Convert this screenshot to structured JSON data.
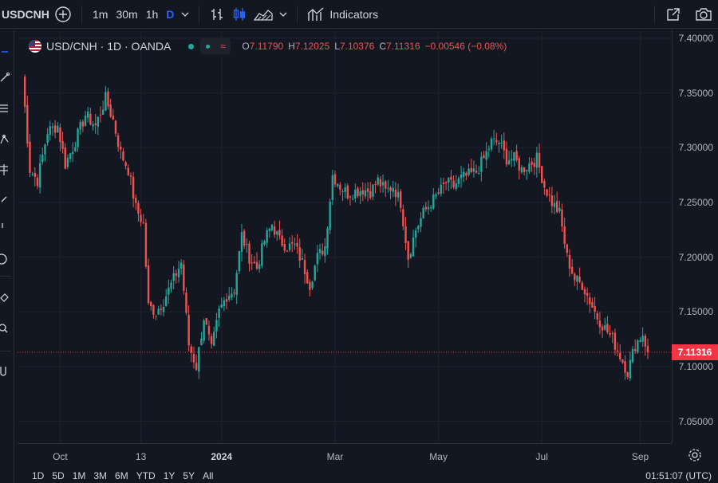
{
  "toolbar": {
    "symbol": "USDCNH",
    "intervals": [
      "1m",
      "30m",
      "1h",
      "D"
    ],
    "active_interval": "D",
    "indicators_label": "Indicators"
  },
  "legend": {
    "title": "USD/CNH · 1D · OANDA",
    "o_label": "O",
    "o_val": "7.11790",
    "h_label": "H",
    "h_val": "7.12025",
    "l_label": "L",
    "l_val": "7.10376",
    "c_label": "C",
    "c_val": "7.11316",
    "change": "−0.00546 (−0.08%)"
  },
  "price_axis": {
    "ticks": [
      "7.40000",
      "7.35000",
      "7.30000",
      "7.25000",
      "7.20000",
      "7.15000",
      "7.10000",
      "7.05000"
    ],
    "last_price": "7.11316"
  },
  "time_axis": {
    "ticks": [
      {
        "label": "Oct",
        "bold": false
      },
      {
        "label": "13",
        "bold": false
      },
      {
        "label": "2024",
        "bold": true
      },
      {
        "label": "Mar",
        "bold": false
      },
      {
        "label": "May",
        "bold": false
      },
      {
        "label": "Jul",
        "bold": false
      },
      {
        "label": "Sep",
        "bold": false
      }
    ]
  },
  "bottom": {
    "ranges": [
      "1D",
      "5D",
      "1M",
      "3M",
      "6M",
      "YTD",
      "1Y",
      "5Y",
      "All"
    ],
    "clock": "01:51:07 (UTC)"
  },
  "colors": {
    "up": "#26a69a",
    "down": "#ef5350",
    "background": "#131722",
    "grid": "#1e222d",
    "last_price": "#f23645"
  },
  "chart_data": {
    "type": "candlestick",
    "symbol": "USD/CNH",
    "interval": "1D",
    "ylim": [
      7.03,
      7.4
    ],
    "anchors": [
      [
        0,
        7.365
      ],
      [
        3,
        7.28
      ],
      [
        6,
        7.27
      ],
      [
        10,
        7.315
      ],
      [
        14,
        7.32
      ],
      [
        17,
        7.285
      ],
      [
        20,
        7.3
      ],
      [
        25,
        7.33
      ],
      [
        29,
        7.32
      ],
      [
        33,
        7.345
      ],
      [
        36,
        7.325
      ],
      [
        39,
        7.295
      ],
      [
        42,
        7.28
      ],
      [
        45,
        7.245
      ],
      [
        48,
        7.23
      ],
      [
        50,
        7.155
      ],
      [
        53,
        7.15
      ],
      [
        56,
        7.16
      ],
      [
        60,
        7.18
      ],
      [
        63,
        7.195
      ],
      [
        66,
        7.12
      ],
      [
        69,
        7.1
      ],
      [
        72,
        7.145
      ],
      [
        75,
        7.115
      ],
      [
        78,
        7.15
      ],
      [
        81,
        7.165
      ],
      [
        84,
        7.17
      ],
      [
        87,
        7.22
      ],
      [
        90,
        7.2
      ],
      [
        93,
        7.19
      ],
      [
        96,
        7.215
      ],
      [
        99,
        7.23
      ],
      [
        102,
        7.215
      ],
      [
        105,
        7.21
      ],
      [
        108,
        7.21
      ],
      [
        111,
        7.195
      ],
      [
        114,
        7.175
      ],
      [
        117,
        7.2
      ],
      [
        120,
        7.21
      ],
      [
        123,
        7.275
      ],
      [
        126,
        7.265
      ],
      [
        129,
        7.258
      ],
      [
        132,
        7.26
      ],
      [
        135,
        7.262
      ],
      [
        138,
        7.26
      ],
      [
        141,
        7.27
      ],
      [
        144,
        7.26
      ],
      [
        147,
        7.265
      ],
      [
        150,
        7.25
      ],
      [
        153,
        7.2
      ],
      [
        156,
        7.225
      ],
      [
        159,
        7.24
      ],
      [
        162,
        7.25
      ],
      [
        165,
        7.258
      ],
      [
        168,
        7.268
      ],
      [
        171,
        7.265
      ],
      [
        174,
        7.272
      ],
      [
        177,
        7.275
      ],
      [
        180,
        7.278
      ],
      [
        183,
        7.29
      ],
      [
        186,
        7.305
      ],
      [
        189,
        7.305
      ],
      [
        192,
        7.29
      ],
      [
        195,
        7.29
      ],
      [
        198,
        7.28
      ],
      [
        201,
        7.285
      ],
      [
        204,
        7.29
      ],
      [
        207,
        7.265
      ],
      [
        210,
        7.25
      ],
      [
        213,
        7.24
      ],
      [
        216,
        7.2
      ],
      [
        219,
        7.18
      ],
      [
        222,
        7.175
      ],
      [
        225,
        7.16
      ],
      [
        228,
        7.145
      ],
      [
        231,
        7.135
      ],
      [
        234,
        7.125
      ],
      [
        237,
        7.11
      ],
      [
        240,
        7.095
      ],
      [
        243,
        7.12
      ],
      [
        246,
        7.13
      ],
      [
        248,
        7.11316
      ]
    ]
  }
}
